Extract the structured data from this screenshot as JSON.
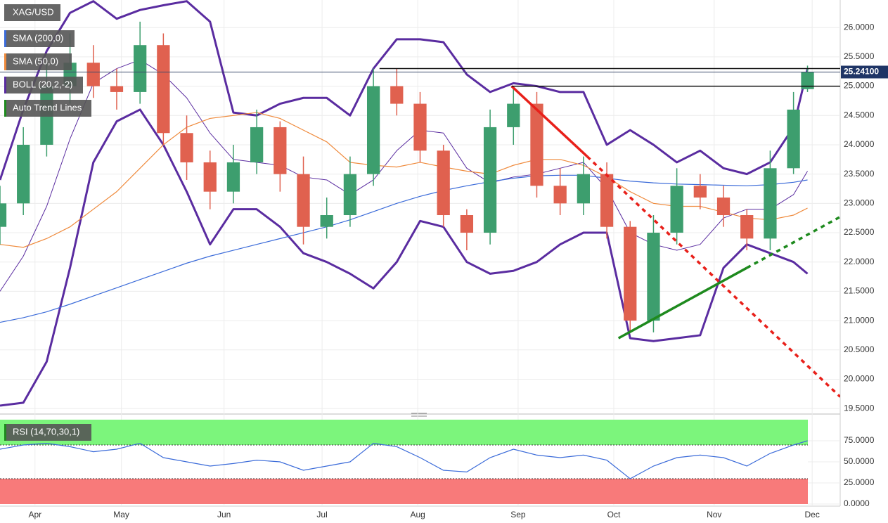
{
  "chart_data": [
    {
      "type": "candlestick",
      "title": "XAG/USD",
      "x": [
        0,
        5,
        10,
        15,
        20,
        25,
        30,
        35,
        40,
        45,
        50,
        55,
        60,
        65,
        70,
        75,
        80,
        85,
        90,
        95,
        100,
        105,
        110,
        115,
        120,
        125,
        130,
        135,
        140,
        145,
        150,
        155,
        160,
        165,
        170,
        173
      ],
      "open": [
        22.6,
        23.0,
        24.0,
        25.0,
        25.4,
        25.0,
        24.9,
        25.7,
        24.2,
        23.7,
        23.2,
        23.7,
        24.3,
        23.5,
        22.6,
        22.8,
        23.5,
        25.0,
        24.7,
        23.9,
        22.8,
        22.5,
        24.3,
        24.7,
        23.3,
        23.0,
        23.5,
        22.6,
        21.0,
        22.5,
        23.3,
        23.1,
        22.8,
        22.4,
        23.6,
        24.95
      ],
      "high": [
        23.3,
        24.3,
        25.4,
        25.9,
        25.7,
        25.3,
        26.1,
        25.9,
        24.5,
        23.9,
        24.0,
        24.6,
        24.4,
        23.8,
        23.1,
        23.8,
        25.3,
        25.3,
        24.9,
        24.0,
        22.9,
        24.6,
        25.0,
        24.9,
        23.6,
        23.8,
        23.7,
        22.7,
        22.8,
        23.6,
        23.5,
        23.3,
        22.9,
        23.9,
        24.9,
        25.35
      ],
      "low": [
        22.3,
        22.8,
        23.8,
        24.7,
        24.8,
        24.6,
        24.7,
        24.0,
        23.4,
        22.9,
        23.0,
        23.5,
        23.2,
        22.3,
        22.4,
        22.6,
        23.3,
        24.5,
        23.7,
        22.6,
        22.2,
        22.3,
        24.0,
        23.1,
        22.8,
        22.8,
        22.4,
        20.8,
        20.8,
        22.3,
        22.9,
        22.6,
        22.2,
        22.2,
        23.5,
        24.9
      ],
      "close": [
        23.0,
        24.0,
        25.0,
        25.4,
        25.0,
        24.9,
        25.7,
        24.2,
        23.7,
        23.2,
        23.7,
        24.3,
        23.5,
        22.6,
        22.8,
        23.5,
        25.0,
        24.7,
        23.9,
        22.8,
        22.5,
        24.3,
        24.7,
        23.3,
        23.0,
        23.5,
        22.6,
        21.0,
        22.5,
        23.3,
        23.1,
        22.8,
        22.4,
        23.6,
        24.6,
        25.24
      ],
      "up_color": "#3d9e6e",
      "down_color": "#e0614f",
      "series": [
        {
          "name": "SMA (200,0)",
          "color": "#3b6bd9",
          "values": [
            20.97,
            21.05,
            21.15,
            21.28,
            21.42,
            21.56,
            21.7,
            21.84,
            21.98,
            22.1,
            22.2,
            22.3,
            22.4,
            22.5,
            22.6,
            22.72,
            22.86,
            23.0,
            23.12,
            23.22,
            23.3,
            23.37,
            23.43,
            23.47,
            23.48,
            23.48,
            23.43,
            23.38,
            23.35,
            23.33,
            23.32,
            23.31,
            23.3,
            23.32,
            23.36,
            23.4
          ]
        },
        {
          "name": "SMA (50,0)",
          "color": "#ef8a3c",
          "values": [
            22.3,
            22.25,
            22.4,
            22.6,
            22.9,
            23.2,
            23.6,
            24.0,
            24.3,
            24.45,
            24.5,
            24.55,
            24.45,
            24.25,
            24.05,
            23.7,
            23.65,
            23.62,
            23.7,
            23.62,
            23.55,
            23.5,
            23.65,
            23.75,
            23.75,
            23.65,
            23.45,
            23.2,
            23.0,
            22.95,
            22.95,
            22.85,
            22.75,
            22.72,
            22.8,
            22.92
          ]
        }
      ],
      "bands": {
        "name": "BOLL (20,2,-2)",
        "color": "#5a2ca0",
        "upper": [
          23.4,
          24.6,
          25.6,
          26.25,
          26.45,
          26.15,
          26.3,
          26.38,
          26.45,
          26.1,
          24.55,
          24.5,
          24.7,
          24.8,
          24.8,
          24.5,
          25.3,
          25.8,
          25.8,
          25.75,
          25.2,
          24.9,
          25.05,
          25.0,
          24.9,
          24.9,
          24.0,
          24.25,
          24.0,
          23.7,
          23.9,
          23.6,
          23.5,
          23.7,
          24.3,
          25.3
        ],
        "middle": [
          21.5,
          22.1,
          22.95,
          24.1,
          25.05,
          25.3,
          25.45,
          25.2,
          24.8,
          24.2,
          23.75,
          23.7,
          23.65,
          23.45,
          23.4,
          23.15,
          23.4,
          23.9,
          24.25,
          24.2,
          23.6,
          23.35,
          23.45,
          23.5,
          23.6,
          23.7,
          23.25,
          22.5,
          22.3,
          22.2,
          22.3,
          22.75,
          22.9,
          22.9,
          23.15,
          23.55
        ],
        "lower": [
          19.55,
          19.6,
          20.3,
          21.9,
          23.7,
          24.4,
          24.6,
          24.0,
          23.2,
          22.3,
          22.9,
          22.9,
          22.6,
          22.15,
          22.0,
          21.8,
          21.55,
          22.0,
          22.7,
          22.6,
          22.0,
          21.8,
          21.85,
          22.0,
          22.3,
          22.5,
          22.5,
          20.7,
          20.65,
          20.7,
          20.75,
          21.9,
          22.3,
          22.15,
          22.0,
          21.8
        ]
      },
      "trend_legend": {
        "name": "Auto Trend Lines",
        "color": "#1e8a1e"
      },
      "trend_lines": [
        {
          "color": "#e8201a",
          "x": [
            109.6,
            125.8
          ],
          "y": [
            25.0,
            23.8
          ],
          "style": "solid"
        },
        {
          "color": "#e8201a",
          "x": [
            125.8,
            180
          ],
          "y": [
            23.8,
            19.7
          ],
          "style": "dotted"
        },
        {
          "color": "#1e8a1e",
          "x": [
            132.5,
            160
          ],
          "y": [
            20.7,
            21.9
          ],
          "style": "solid"
        },
        {
          "color": "#1e8a1e",
          "x": [
            160,
            180
          ],
          "y": [
            21.9,
            22.77
          ],
          "style": "dotted"
        },
        {
          "color": "#111111",
          "x": [
            81.3,
            180
          ],
          "y": [
            25.3,
            25.3
          ],
          "style": "solid"
        },
        {
          "color": "#111111",
          "x": [
            109.6,
            180
          ],
          "y": [
            25.0,
            25.0
          ],
          "style": "solid"
        }
      ],
      "last_price": {
        "value": 25.241,
        "label": "25.24100"
      },
      "xlim": [
        0,
        180
      ],
      "ylim": [
        19.49,
        26.47
      ],
      "xticks": [
        {
          "value": 7.5,
          "label": "Apr"
        },
        {
          "value": 26,
          "label": "May"
        },
        {
          "value": 48,
          "label": "Jun"
        },
        {
          "value": 69,
          "label": "Jul"
        },
        {
          "value": 89.5,
          "label": "Aug"
        },
        {
          "value": 111,
          "label": "Sep"
        },
        {
          "value": 131.5,
          "label": "Oct"
        },
        {
          "value": 153,
          "label": "Nov"
        },
        {
          "value": 174,
          "label": "Dec"
        }
      ],
      "yticks": [
        {
          "value": 19.5,
          "label": "19.5000"
        },
        {
          "value": 20,
          "label": "20.0000"
        },
        {
          "value": 20.5,
          "label": "20.5000"
        },
        {
          "value": 21,
          "label": "21.0000"
        },
        {
          "value": 21.5,
          "label": "21.5000"
        },
        {
          "value": 22,
          "label": "22.0000"
        },
        {
          "value": 22.5,
          "label": "22.5000"
        },
        {
          "value": 23,
          "label": "23.0000"
        },
        {
          "value": 23.5,
          "label": "23.5000"
        },
        {
          "value": 24,
          "label": "24.0000"
        },
        {
          "value": 24.5,
          "label": "24.5000"
        },
        {
          "value": 25,
          "label": "25.0000"
        },
        {
          "value": 25.5,
          "label": "25.5000"
        },
        {
          "value": 26,
          "label": "26.0000"
        }
      ],
      "grid": true
    },
    {
      "type": "line",
      "title": "RSI (14,70,30,1)",
      "x": [
        0,
        5,
        10,
        15,
        20,
        25,
        30,
        35,
        40,
        45,
        50,
        55,
        60,
        65,
        70,
        75,
        80,
        85,
        90,
        95,
        100,
        105,
        110,
        115,
        120,
        125,
        130,
        135,
        140,
        145,
        150,
        155,
        160,
        165,
        170,
        173
      ],
      "series": [
        {
          "color": "#3b6bd9",
          "values": [
            65,
            70,
            72,
            68,
            62,
            65,
            72,
            55,
            50,
            45,
            48,
            52,
            50,
            40,
            45,
            50,
            72,
            68,
            55,
            40,
            38,
            55,
            65,
            58,
            55,
            58,
            52,
            30,
            45,
            55,
            58,
            55,
            45,
            60,
            70,
            75
          ]
        }
      ],
      "overbought": 70,
      "oversold": 30,
      "overbought_color": "#7cf57c",
      "oversold_color": "#f87a7a",
      "xlim": [
        0,
        180
      ],
      "ylim": [
        0,
        100
      ],
      "yticks": [
        {
          "value": 0,
          "label": "0.0000"
        },
        {
          "value": 25,
          "label": "25.0000"
        },
        {
          "value": 50,
          "label": "50.0000"
        },
        {
          "value": 75,
          "label": "75.0000"
        }
      ]
    }
  ]
}
